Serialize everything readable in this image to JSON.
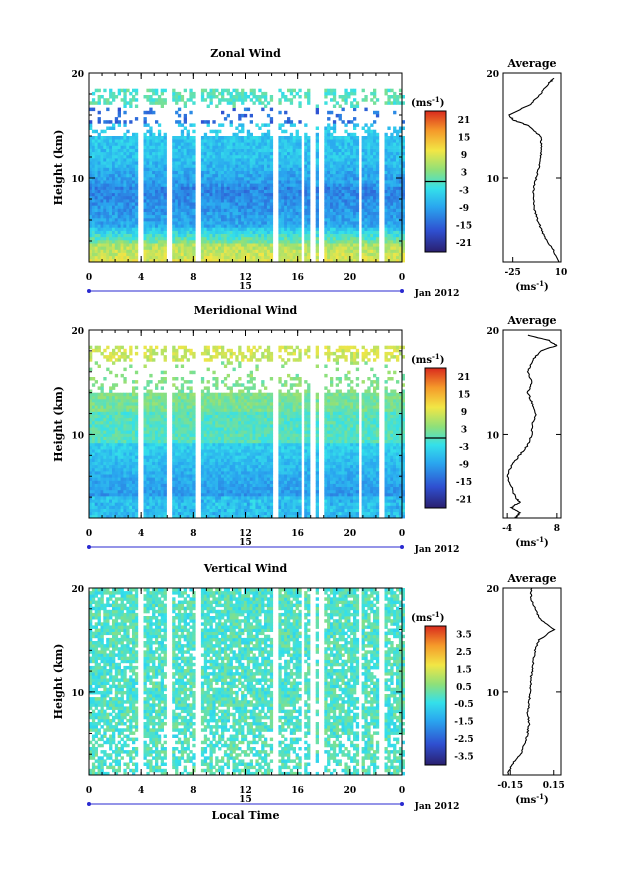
{
  "chart_data": [
    {
      "type": "heatmap",
      "title": "Zonal Wind",
      "ylabel": "Height (km)",
      "x_ticks": [
        "0",
        "4",
        "8",
        "12",
        "16",
        "20",
        "0"
      ],
      "xlim": [
        0,
        24
      ],
      "y_ticks": [
        "10",
        "20"
      ],
      "ylim": [
        2,
        20
      ],
      "date_day": "15",
      "date_label": "Jan 2012",
      "colorbar": {
        "unit_base": "(ms",
        "unit_exp": "-1",
        "unit_close": ")",
        "ticks": [
          "21",
          "15",
          "9",
          "3",
          "-3",
          "-9",
          "-15",
          "-21"
        ],
        "range": [
          -24,
          24
        ],
        "marker_value": 0
      },
      "profile": {
        "title": "Average",
        "x_ticks": [
          "-25",
          "10"
        ],
        "xlim": [
          -32,
          10
        ],
        "y_ticks": [
          "10",
          "20"
        ],
        "xlabel_base": "(ms",
        "xlabel_exp": "-1",
        "xlabel_close": ")",
        "heights": [
          2.0,
          3.0,
          4.0,
          5.0,
          6.0,
          7.0,
          8.0,
          9.0,
          10.0,
          11.0,
          12.0,
          13.0,
          14.0,
          15.0,
          15.5,
          16.0,
          17.0,
          18.0,
          19.0,
          19.5
        ],
        "values": [
          8,
          5,
          0,
          -4,
          -7,
          -9,
          -10,
          -10,
          -8,
          -6,
          -5,
          -4,
          -5,
          -14,
          -24,
          -28,
          -12,
          -5,
          1,
          5
        ]
      }
    },
    {
      "type": "heatmap",
      "title": "Meridional Wind",
      "ylabel": "Height (km)",
      "x_ticks": [
        "0",
        "4",
        "8",
        "12",
        "16",
        "20",
        "0"
      ],
      "xlim": [
        0,
        24
      ],
      "y_ticks": [
        "10",
        "20"
      ],
      "ylim": [
        2,
        20
      ],
      "date_day": "15",
      "date_label": "Jan 2012",
      "colorbar": {
        "unit_base": "(ms",
        "unit_exp": "-1",
        "unit_close": ")",
        "ticks": [
          "21",
          "15",
          "9",
          "3",
          "-3",
          "-9",
          "-15",
          "-21"
        ],
        "range": [
          -24,
          24
        ],
        "marker_value": 0
      },
      "profile": {
        "title": "Average",
        "x_ticks": [
          "-4",
          "8"
        ],
        "xlim": [
          -5,
          9
        ],
        "y_ticks": [
          "10",
          "20"
        ],
        "xlabel_base": "(ms",
        "xlabel_exp": "-1",
        "xlabel_close": ")",
        "heights": [
          2.0,
          2.5,
          3.0,
          3.5,
          4.0,
          5.0,
          6.0,
          7.0,
          8.0,
          9.0,
          10.0,
          11.0,
          12.0,
          13.0,
          14.0,
          15.0,
          16.0,
          17.0,
          18.0,
          18.5,
          19.0,
          19.5
        ],
        "values": [
          -2,
          -1,
          -3,
          -1,
          -2,
          -3,
          -4,
          -3,
          -1,
          1,
          2,
          2,
          3,
          2,
          1,
          2,
          1,
          2,
          4,
          8,
          6,
          1
        ]
      }
    },
    {
      "type": "heatmap",
      "title": "Vertical Wind",
      "ylabel": "Height (km)",
      "xlabel": "Local Time",
      "x_ticks": [
        "0",
        "4",
        "8",
        "12",
        "16",
        "20",
        "0"
      ],
      "xlim": [
        0,
        24
      ],
      "y_ticks": [
        "10",
        "20"
      ],
      "ylim": [
        2,
        20
      ],
      "date_day": "15",
      "date_label": "Jan 2012",
      "colorbar": {
        "unit_base": "(ms",
        "unit_exp": "-1",
        "unit_close": ")",
        "ticks": [
          "3.5",
          "2.5",
          "1.5",
          "0.5",
          "-0.5",
          "-1.5",
          "-2.5",
          "-3.5"
        ],
        "range": [
          -4,
          4
        ]
      },
      "profile": {
        "title": "Average",
        "x_ticks": [
          "-0.15",
          "0.15"
        ],
        "xlim": [
          -0.2,
          0.2
        ],
        "y_ticks": [
          "10",
          "20"
        ],
        "xlabel_base": "(ms",
        "xlabel_exp": "-1",
        "xlabel_close": ")",
        "heights": [
          2.0,
          3.0,
          4.0,
          5.0,
          6.0,
          7.0,
          8.0,
          9.0,
          10.0,
          11.0,
          12.0,
          13.0,
          14.0,
          15.0,
          16.0,
          17.0,
          18.0,
          19.0,
          20.0
        ],
        "values": [
          -0.17,
          -0.14,
          -0.08,
          -0.05,
          -0.03,
          -0.02,
          -0.03,
          -0.02,
          -0.01,
          -0.01,
          0.0,
          0.01,
          0.02,
          0.05,
          0.15,
          0.06,
          0.02,
          -0.01,
          0.0
        ]
      }
    }
  ]
}
